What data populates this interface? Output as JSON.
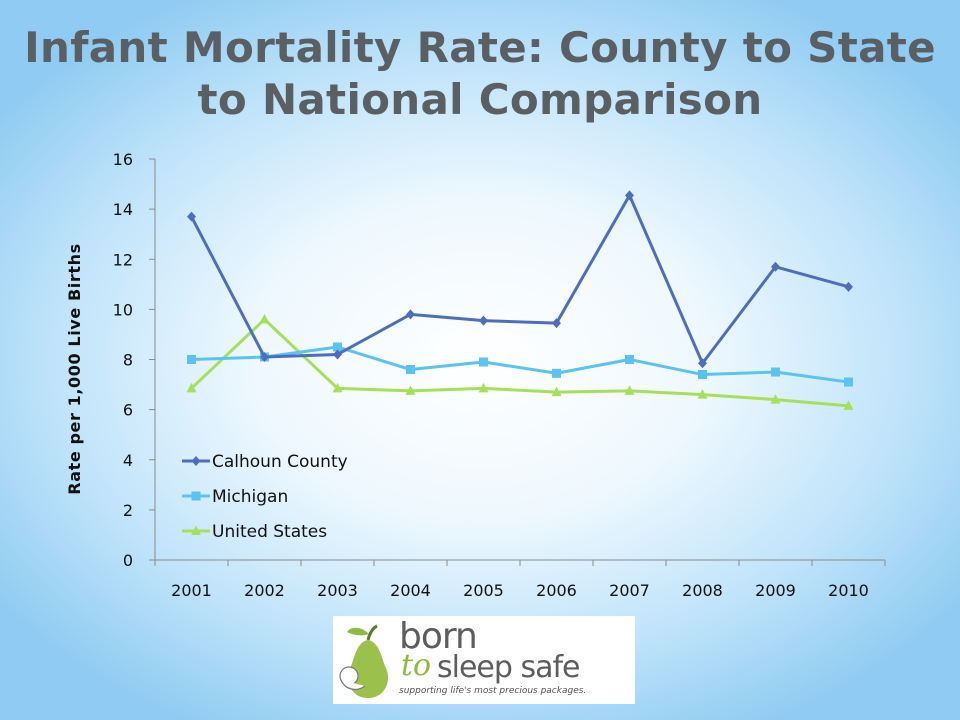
{
  "title": "Infant Mortality Rate: County to State to National Comparison",
  "colors": {
    "calhoun": "#4f6dbe",
    "michigan": "#5bc3ef",
    "united_states": "#a6e05a",
    "title": "#5a5f63"
  },
  "logo": {
    "word_born": "born",
    "word_to": "to",
    "word_sleep_safe": "sleep safe",
    "tagline": "supporting life's most precious packages."
  },
  "chart_data": {
    "type": "line",
    "title": "Infant Mortality Rate: County to State to National Comparison",
    "xlabel": "",
    "ylabel": "Rate per 1,000 Live Births",
    "x": [
      "2001",
      "2002",
      "2003",
      "2004",
      "2005",
      "2006",
      "2007",
      "2008",
      "2009",
      "2010"
    ],
    "ylim": [
      0,
      16
    ],
    "yticks": [
      0,
      2,
      4,
      6,
      8,
      10,
      12,
      14,
      16
    ],
    "grid": false,
    "legend_position": "lower-left inside",
    "series": [
      {
        "name": "Calhoun County",
        "marker": "diamond",
        "color": "#4f6dbe",
        "values": [
          13.7,
          8.1,
          8.2,
          9.8,
          9.55,
          9.45,
          14.55,
          7.85,
          11.7,
          10.9
        ]
      },
      {
        "name": "Michigan",
        "marker": "square",
        "color": "#5bc3ef",
        "values": [
          8.0,
          8.1,
          8.5,
          7.6,
          7.9,
          7.45,
          8.0,
          7.4,
          7.5,
          7.1
        ]
      },
      {
        "name": "United States",
        "marker": "triangle",
        "color": "#a6e05a",
        "values": [
          6.85,
          9.6,
          6.85,
          6.75,
          6.85,
          6.7,
          6.75,
          6.6,
          6.4,
          6.15
        ]
      }
    ]
  }
}
